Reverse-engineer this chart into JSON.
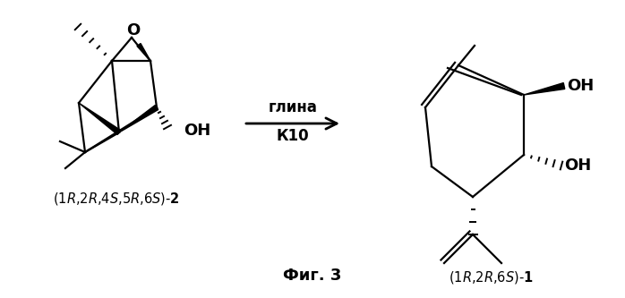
{
  "bg_color": "#ffffff",
  "fig_width": 6.98,
  "fig_height": 3.33,
  "dpi": 100,
  "arrow_text_line1": "глина",
  "arrow_text_line2": "К10",
  "fig_label": "Фиг. 3"
}
